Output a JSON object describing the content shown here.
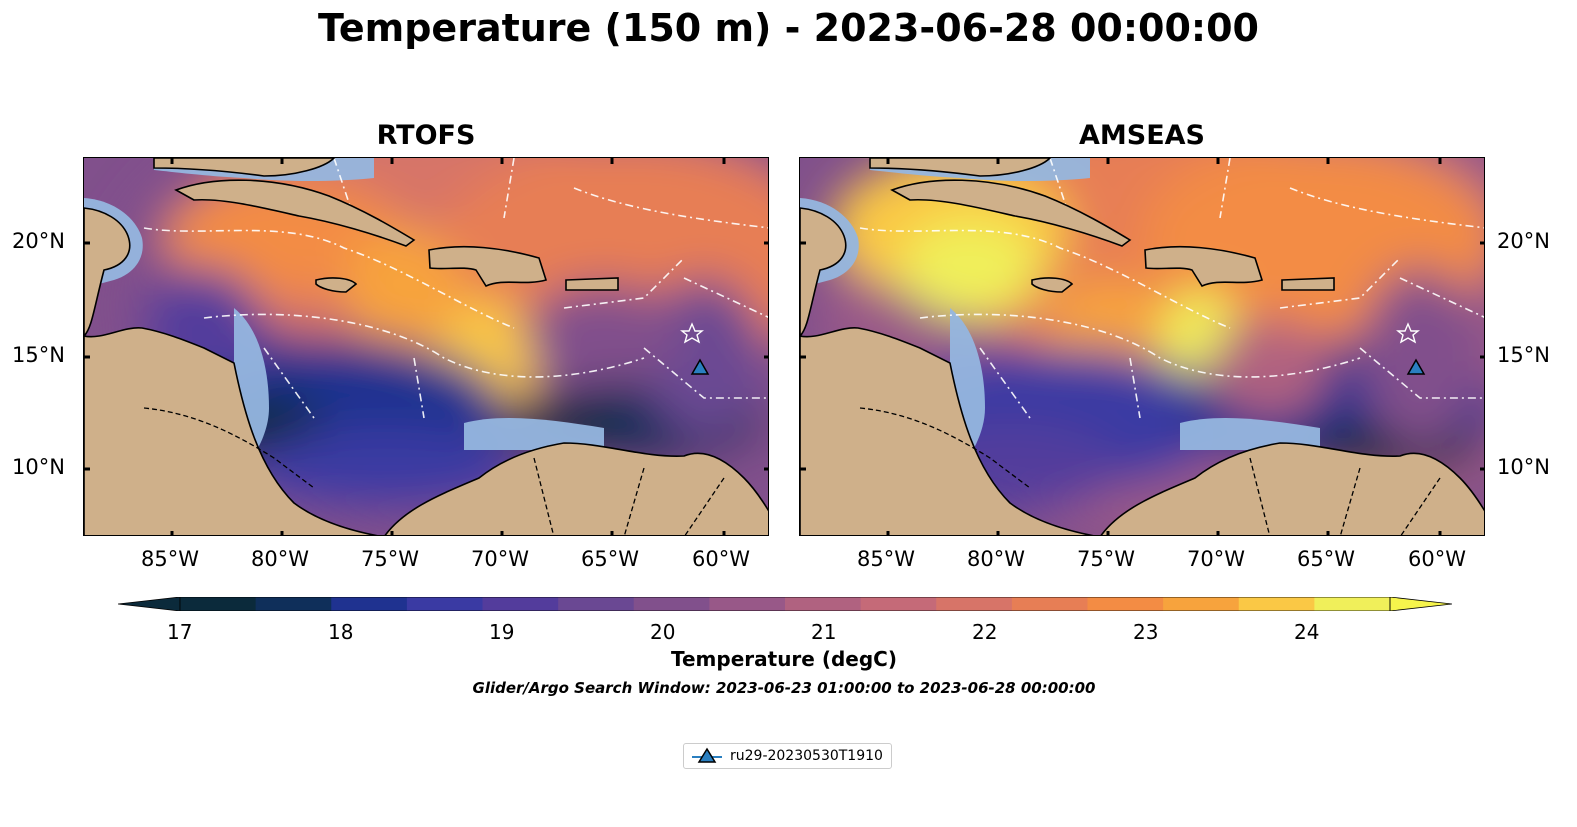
{
  "title": "Temperature (150 m) - 2023-06-28 00:00:00",
  "panels": [
    {
      "title": "RTOFS"
    },
    {
      "title": "AMSEAS"
    }
  ],
  "lon_ticks": [
    "85°W",
    "80°W",
    "75°W",
    "70°W",
    "65°W",
    "60°W"
  ],
  "lat_ticks": [
    "20°N",
    "15°N",
    "10°N"
  ],
  "colorbar": {
    "label": "Temperature (degC)",
    "tick_labels": [
      "17",
      "18",
      "19",
      "20",
      "21",
      "22",
      "23",
      "24"
    ],
    "min": 17,
    "max": 24.5,
    "step": 0.5,
    "colors": [
      "#0b2a3b",
      "#0f2f5a",
      "#1f3290",
      "#3a3aa3",
      "#533c9c",
      "#6a4893",
      "#81508c",
      "#985888",
      "#b06280",
      "#c56a78",
      "#d77468",
      "#e77e55",
      "#f38c44",
      "#f7a33d",
      "#fac845",
      "#f0ef5a"
    ]
  },
  "search_window": "Glider/Argo Search Window: 2023-06-23 01:00:00 to 2023-06-28 00:00:00",
  "legend": {
    "label": "ru29-20230530T1910",
    "marker_color": "#2a7fc0"
  },
  "chart_data": {
    "type": "heatmap",
    "title": "Temperature (150 m) - 2023-06-28 00:00:00",
    "variable": "Temperature (degC)",
    "depth": "150 m",
    "datetime": "2023-06-28 00:00:00",
    "models": [
      "RTOFS",
      "AMSEAS"
    ],
    "lon_range": [
      -89,
      -58
    ],
    "lat_range": [
      7,
      24
    ],
    "colorbar_range": [
      17,
      24.5
    ],
    "colorbar_extend": "both",
    "glider": {
      "name": "ru29-20230530T1910",
      "lon": -61,
      "lat": 14.5
    }
  }
}
